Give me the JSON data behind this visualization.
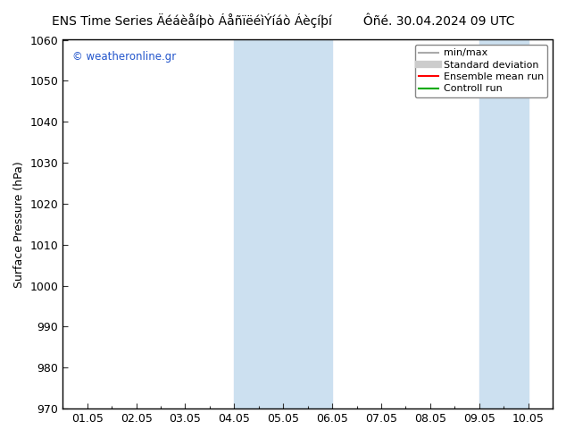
{
  "title_left": "ENS Time Series Äéáèåíþò ÁåñïëéìÝíáò Áèçíþí",
  "title_right": "Ôñé. 30.04.2024 09 UTC",
  "ylabel": "Surface Pressure (hPa)",
  "ylim": [
    970,
    1060
  ],
  "yticks": [
    970,
    980,
    990,
    1000,
    1010,
    1020,
    1030,
    1040,
    1050,
    1060
  ],
  "xtick_positions": [
    1,
    2,
    3,
    4,
    5,
    6,
    7,
    8,
    9,
    10
  ],
  "xtick_labels": [
    "01.05",
    "02.05",
    "03.05",
    "04.05",
    "05.05",
    "06.05",
    "07.05",
    "08.05",
    "09.05",
    "10.05"
  ],
  "watermark": "© weatheronline.gr",
  "shaded_bands": [
    {
      "xstart": 4,
      "xend": 6,
      "color": "#cce0f0"
    },
    {
      "xstart": 9,
      "xend": 10,
      "color": "#cce0f0"
    }
  ],
  "legend_items": [
    {
      "label": "min/max",
      "color": "#aaaaaa",
      "lw": 1.5
    },
    {
      "label": "Standard deviation",
      "color": "#cccccc",
      "lw": 6
    },
    {
      "label": "Ensemble mean run",
      "color": "#ff0000",
      "lw": 1.5
    },
    {
      "label": "Controll run",
      "color": "#00aa00",
      "lw": 1.5
    }
  ],
  "background_color": "#ffffff",
  "plot_bg_color": "#ffffff",
  "title_fontsize": 10,
  "tick_fontsize": 9,
  "watermark_color": "#2255cc",
  "xlim": [
    0.5,
    10.5
  ]
}
